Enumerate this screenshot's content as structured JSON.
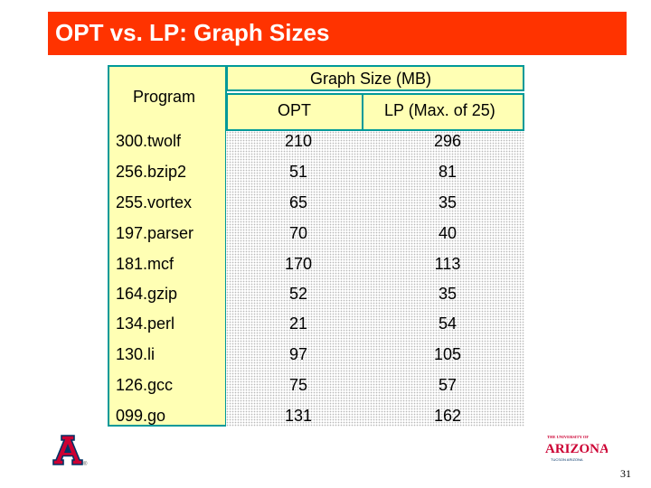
{
  "slide": {
    "title": "OPT vs. LP: Graph Sizes",
    "page_number": "31"
  },
  "table": {
    "program_header": "Program",
    "group_header": "Graph Size (MB)",
    "opt_header": "OPT",
    "lp_header": "LP (Max. of 25)",
    "rows": [
      {
        "program": "300.twolf",
        "opt": "210",
        "lp": "296"
      },
      {
        "program": "256.bzip2",
        "opt": "51",
        "lp": "81"
      },
      {
        "program": "255.vortex",
        "opt": "65",
        "lp": "35"
      },
      {
        "program": "197.parser",
        "opt": "70",
        "lp": "40"
      },
      {
        "program": "181.mcf",
        "opt": "170",
        "lp": "113"
      },
      {
        "program": "164.gzip",
        "opt": "52",
        "lp": "35"
      },
      {
        "program": "134.perl",
        "opt": "21",
        "lp": "54"
      },
      {
        "program": "130.li",
        "opt": "97",
        "lp": "105"
      },
      {
        "program": "126.gcc",
        "opt": "75",
        "lp": "57"
      },
      {
        "program": "099.go",
        "opt": "131",
        "lp": "162"
      }
    ]
  },
  "logos": {
    "left": "university-a-logo",
    "right_small_top": "THE UNIVERSITY OF",
    "right_name": "ARIZONA",
    "right_small_bottom": "TUCSON ARIZONA"
  },
  "colors": {
    "title_bar": "#ff3300",
    "header_fill": "#ffffb4",
    "border": "#009999",
    "logo_red": "#cc0033",
    "logo_blue": "#003366"
  }
}
